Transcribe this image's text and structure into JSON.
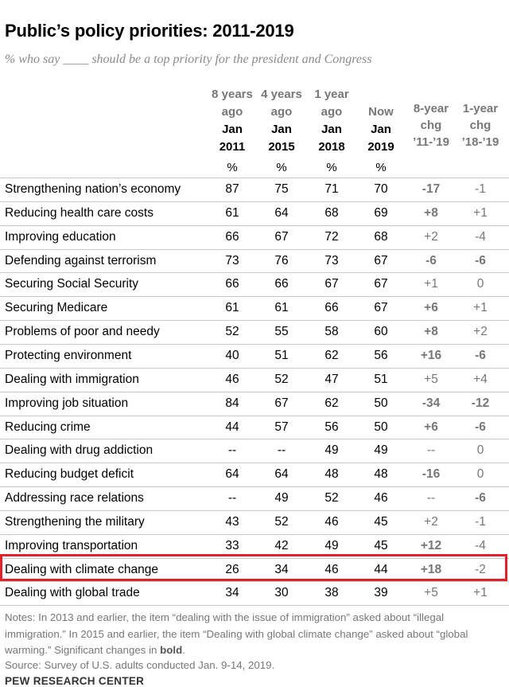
{
  "chart_data": {
    "type": "table",
    "title": "Public’s policy priorities: 2011-2019",
    "subtitle": "% who say ____ should be a top priority for the president and Congress",
    "columns": [
      {
        "ago": "8 years ago",
        "ago1": "8 years",
        "ago2": "ago",
        "month": "Jan",
        "year": "2011",
        "unit": "%"
      },
      {
        "ago": "4 years ago",
        "ago1": "4 years",
        "ago2": "ago",
        "month": "Jan",
        "year": "2015",
        "unit": "%"
      },
      {
        "ago": "1 year ago",
        "ago1": "1 year",
        "ago2": "ago",
        "month": "Jan",
        "year": "2018",
        "unit": "%"
      },
      {
        "ago": "Now",
        "ago1": "",
        "ago2": "Now",
        "month": "Jan",
        "year": "2019",
        "unit": "%"
      }
    ],
    "change_columns": [
      {
        "line1": "8-year",
        "line2": "chg",
        "line3": "’11-’19"
      },
      {
        "line1": "1-year",
        "line2": "chg",
        "line3": "’18-’19"
      }
    ],
    "rows": [
      {
        "label": "Strengthening nation’s economy",
        "v2011": "87",
        "v2015": "75",
        "v2018": "71",
        "v2019": "70",
        "chg8": "-17",
        "chg8_sig": true,
        "chg1": "-1",
        "chg1_sig": false
      },
      {
        "label": "Reducing health care costs",
        "v2011": "61",
        "v2015": "64",
        "v2018": "68",
        "v2019": "69",
        "chg8": "+8",
        "chg8_sig": true,
        "chg1": "+1",
        "chg1_sig": false
      },
      {
        "label": "Improving education",
        "v2011": "66",
        "v2015": "67",
        "v2018": "72",
        "v2019": "68",
        "chg8": "+2",
        "chg8_sig": false,
        "chg1": "-4",
        "chg1_sig": false
      },
      {
        "label": "Defending against terrorism",
        "v2011": "73",
        "v2015": "76",
        "v2018": "73",
        "v2019": "67",
        "chg8": "-6",
        "chg8_sig": true,
        "chg1": "-6",
        "chg1_sig": true
      },
      {
        "label": "Securing Social Security",
        "v2011": "66",
        "v2015": "66",
        "v2018": "67",
        "v2019": "67",
        "chg8": "+1",
        "chg8_sig": false,
        "chg1": "0",
        "chg1_sig": false
      },
      {
        "label": "Securing Medicare",
        "v2011": "61",
        "v2015": "61",
        "v2018": "66",
        "v2019": "67",
        "chg8": "+6",
        "chg8_sig": true,
        "chg1": "+1",
        "chg1_sig": false
      },
      {
        "label": "Problems of poor and needy",
        "v2011": "52",
        "v2015": "55",
        "v2018": "58",
        "v2019": "60",
        "chg8": "+8",
        "chg8_sig": true,
        "chg1": "+2",
        "chg1_sig": false
      },
      {
        "label": "Protecting environment",
        "v2011": "40",
        "v2015": "51",
        "v2018": "62",
        "v2019": "56",
        "chg8": "+16",
        "chg8_sig": true,
        "chg1": "-6",
        "chg1_sig": true
      },
      {
        "label": "Dealing with immigration",
        "v2011": "46",
        "v2015": "52",
        "v2018": "47",
        "v2019": "51",
        "chg8": "+5",
        "chg8_sig": false,
        "chg1": "+4",
        "chg1_sig": false
      },
      {
        "label": "Improving job situation",
        "v2011": "84",
        "v2015": "67",
        "v2018": "62",
        "v2019": "50",
        "chg8": "-34",
        "chg8_sig": true,
        "chg1": "-12",
        "chg1_sig": true
      },
      {
        "label": "Reducing crime",
        "v2011": "44",
        "v2015": "57",
        "v2018": "56",
        "v2019": "50",
        "chg8": "+6",
        "chg8_sig": true,
        "chg1": "-6",
        "chg1_sig": true
      },
      {
        "label": "Dealing with drug addiction",
        "v2011": "--",
        "v2015": "--",
        "v2018": "49",
        "v2019": "49",
        "chg8": "--",
        "chg8_sig": false,
        "chg1": "0",
        "chg1_sig": false
      },
      {
        "label": "Reducing budget deficit",
        "v2011": "64",
        "v2015": "64",
        "v2018": "48",
        "v2019": "48",
        "chg8": "-16",
        "chg8_sig": true,
        "chg1": "0",
        "chg1_sig": false
      },
      {
        "label": "Addressing race relations",
        "v2011": "--",
        "v2015": "49",
        "v2018": "52",
        "v2019": "46",
        "chg8": "--",
        "chg8_sig": false,
        "chg1": "-6",
        "chg1_sig": true
      },
      {
        "label": "Strengthening the military",
        "v2011": "43",
        "v2015": "52",
        "v2018": "46",
        "v2019": "45",
        "chg8": "+2",
        "chg8_sig": false,
        "chg1": "-1",
        "chg1_sig": false
      },
      {
        "label": "Improving transportation",
        "v2011": "33",
        "v2015": "42",
        "v2018": "49",
        "v2019": "45",
        "chg8": "+12",
        "chg8_sig": true,
        "chg1": "-4",
        "chg1_sig": false
      },
      {
        "label": "Dealing with climate change",
        "v2011": "26",
        "v2015": "34",
        "v2018": "46",
        "v2019": "44",
        "chg8": "+18",
        "chg8_sig": true,
        "chg1": "-2",
        "chg1_sig": false,
        "highlighted": true
      },
      {
        "label": "Dealing with global trade",
        "v2011": "34",
        "v2015": "30",
        "v2018": "38",
        "v2019": "39",
        "chg8": "+5",
        "chg8_sig": false,
        "chg1": "+1",
        "chg1_sig": false
      }
    ]
  },
  "notes": {
    "text_1": "Notes: In 2013 and earlier, the item “dealing with the issue of immigration” asked about “illegal immigration.” In 2015 and earlier, the item “Dealing with global climate change” asked about “global warming.” Significant changes in ",
    "bold_word": "bold",
    "text_2": "."
  },
  "source": "Source: Survey of U.S. adults conducted Jan. 9-14, 2019.",
  "organization": "PEW RESEARCH CENTER",
  "colors": {
    "highlight_border": "#e3212b",
    "muted_text": "#777777",
    "rule": "#c8c8c8"
  }
}
